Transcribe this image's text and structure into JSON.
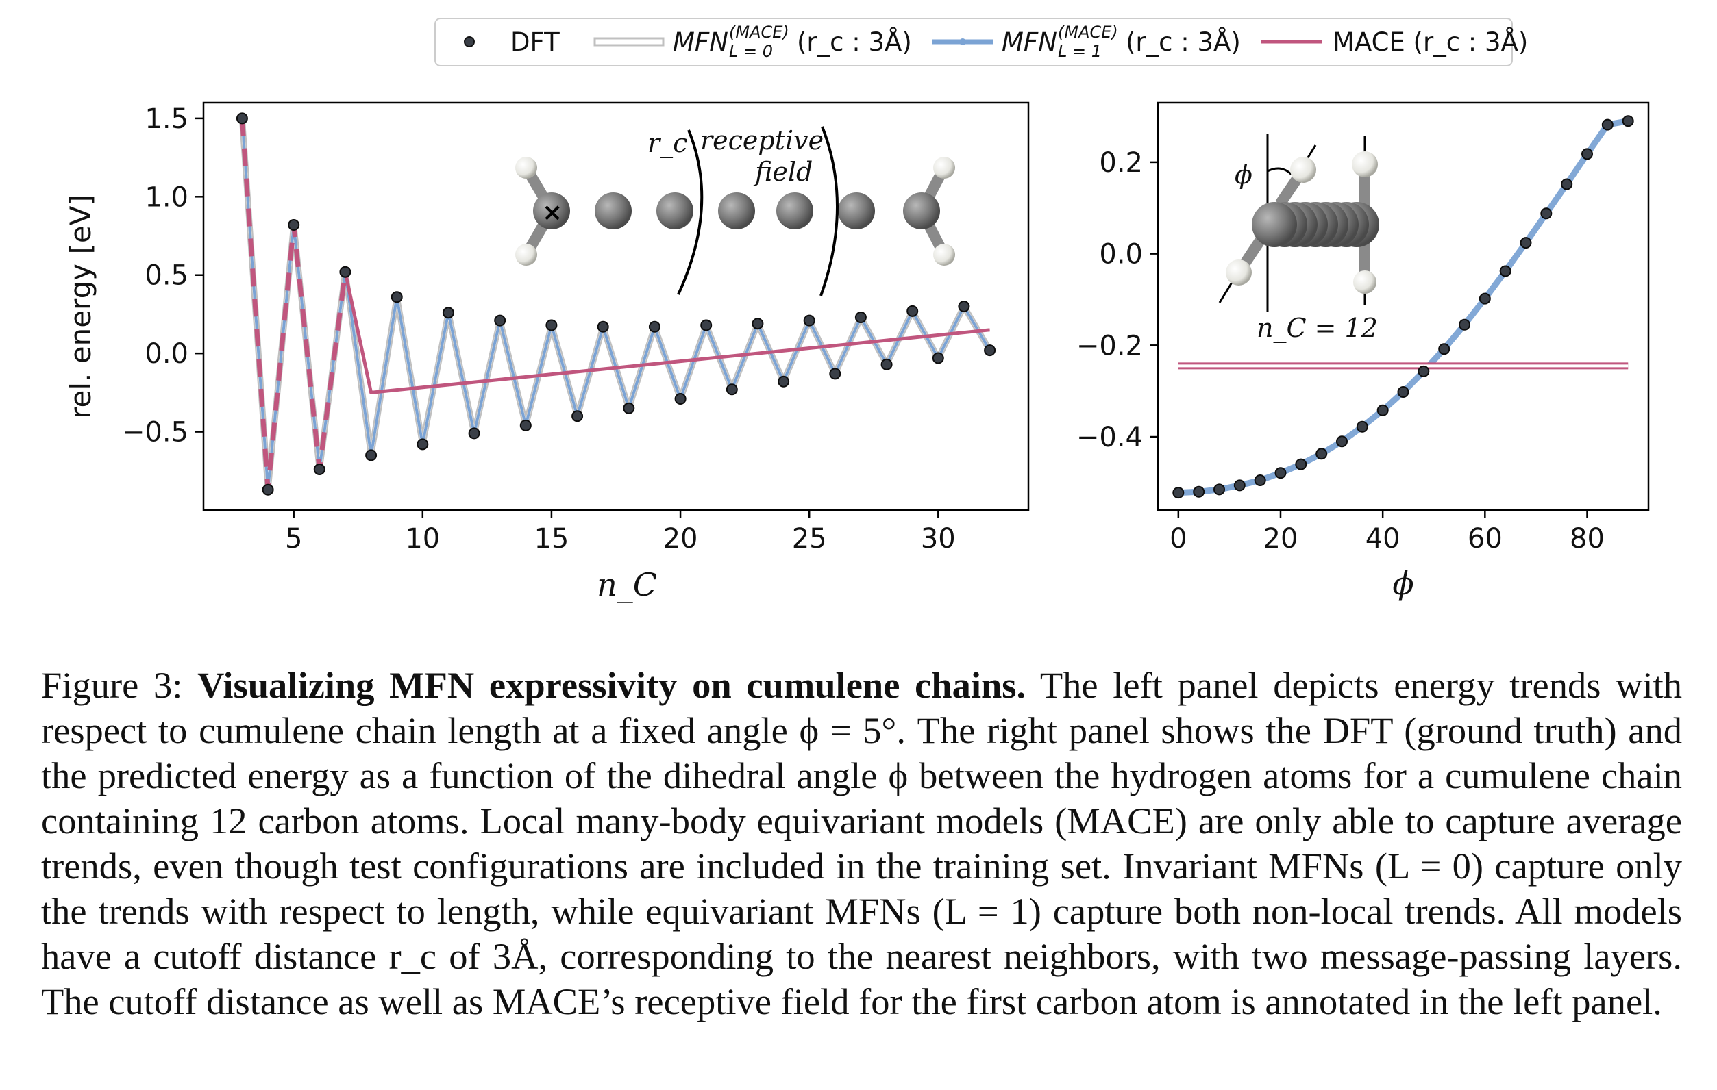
{
  "legend": {
    "dft": "DFT",
    "mfn0_main": "MFN",
    "mfn0_sup": "(MACE)",
    "mfn0_sub": "L = 0",
    "mfn0_tail": "(r_c : 3Å)",
    "mfn1_main": "MFN",
    "mfn1_sup": "(MACE)",
    "mfn1_sub": "L = 1",
    "mfn1_tail": "(r_c : 3Å)",
    "mace": "MACE (r_c : 3Å)"
  },
  "colors": {
    "dft": "#3a3f47",
    "mfn0_edge": "#c0c0c0",
    "mfn1": "#7ba3d4",
    "mace": "#c0567e",
    "axis": "#000000"
  },
  "annotations": {
    "rc": "r_c",
    "receptive_line1": "receptive",
    "receptive_line2": "field",
    "phi": "ϕ",
    "nc12": "n_C = 12"
  },
  "chart_data": [
    {
      "type": "line",
      "xlabel": "n_C",
      "ylabel": "rel. energy [eV]",
      "xlim": [
        1.5,
        33.5
      ],
      "ylim": [
        -1.0,
        1.6
      ],
      "xticks": [
        5,
        10,
        15,
        20,
        25,
        30
      ],
      "yticks": [
        1.5,
        1.0,
        0.5,
        0.0,
        -0.5
      ],
      "ytick_labels": [
        "1.5",
        "1.0",
        "0.5",
        "0.0",
        "−0.5"
      ],
      "x": [
        3,
        4,
        5,
        6,
        7,
        8,
        9,
        10,
        11,
        12,
        13,
        14,
        15,
        16,
        17,
        18,
        19,
        20,
        21,
        22,
        23,
        24,
        25,
        26,
        27,
        28,
        29,
        30,
        31,
        32
      ],
      "series": [
        {
          "name": "DFT",
          "values": [
            1.5,
            -0.87,
            0.82,
            -0.74,
            0.52,
            -0.65,
            0.36,
            -0.58,
            0.26,
            -0.51,
            0.21,
            -0.46,
            0.18,
            -0.4,
            0.17,
            -0.35,
            0.17,
            -0.29,
            0.18,
            -0.23,
            0.19,
            -0.18,
            0.21,
            -0.13,
            0.23,
            -0.07,
            0.27,
            -0.03,
            0.3,
            0.02
          ]
        },
        {
          "name": "MFN (MACE) L=0",
          "values": [
            1.5,
            -0.87,
            0.82,
            -0.74,
            0.52,
            -0.65,
            0.36,
            -0.58,
            0.26,
            -0.51,
            0.21,
            -0.46,
            0.18,
            -0.4,
            0.17,
            -0.35,
            0.17,
            -0.29,
            0.18,
            -0.23,
            0.19,
            -0.18,
            0.21,
            -0.13,
            0.23,
            -0.07,
            0.27,
            -0.03,
            0.3,
            0.02
          ]
        },
        {
          "name": "MFN (MACE) L=1",
          "values": [
            1.5,
            -0.87,
            0.82,
            -0.74,
            0.52,
            -0.65,
            0.36,
            -0.58,
            0.26,
            -0.51,
            0.21,
            -0.46,
            0.18,
            -0.4,
            0.17,
            -0.35,
            0.17,
            -0.29,
            0.18,
            -0.23,
            0.19,
            -0.18,
            0.21,
            -0.13,
            0.23,
            -0.07,
            0.27,
            -0.03,
            0.3,
            0.02
          ]
        },
        {
          "name": "MACE",
          "x": [
            3,
            4,
            5,
            6,
            7,
            8,
            32
          ],
          "values": [
            1.5,
            -0.87,
            0.82,
            -0.74,
            0.52,
            -0.25,
            0.15
          ]
        }
      ]
    },
    {
      "type": "line",
      "xlabel": "ϕ",
      "xlim": [
        -4,
        92
      ],
      "ylim": [
        -0.56,
        0.33
      ],
      "xticks": [
        0,
        20,
        40,
        60,
        80
      ],
      "yticks": [
        0.2,
        0.0,
        -0.2,
        -0.4
      ],
      "ytick_labels": [
        "0.2",
        "0.0",
        "−0.2",
        "−0.4"
      ],
      "x": [
        0,
        4,
        8,
        12,
        16,
        20,
        24,
        28,
        32,
        36,
        40,
        44,
        48,
        52,
        56,
        60,
        64,
        68,
        72,
        76,
        80,
        84,
        88
      ],
      "series": [
        {
          "name": "DFT",
          "values": [
            -0.522,
            -0.52,
            -0.515,
            -0.506,
            -0.495,
            -0.479,
            -0.46,
            -0.437,
            -0.41,
            -0.378,
            -0.342,
            -0.302,
            -0.257,
            -0.208,
            -0.155,
            -0.098,
            -0.038,
            0.024,
            0.088,
            0.152,
            0.218,
            0.282,
            0.29
          ]
        },
        {
          "name": "MFN (MACE) L=0",
          "values": [
            -0.245,
            -0.245,
            -0.245,
            -0.245,
            -0.245,
            -0.245,
            -0.245,
            -0.245,
            -0.245,
            -0.245,
            -0.245,
            -0.245,
            -0.245,
            -0.245,
            -0.245,
            -0.245,
            -0.245,
            -0.245,
            -0.245,
            -0.245,
            -0.245,
            -0.245,
            -0.245
          ]
        },
        {
          "name": "MFN (MACE) L=1",
          "values": [
            -0.522,
            -0.52,
            -0.515,
            -0.506,
            -0.495,
            -0.479,
            -0.46,
            -0.437,
            -0.41,
            -0.378,
            -0.342,
            -0.302,
            -0.257,
            -0.208,
            -0.155,
            -0.098,
            -0.038,
            0.024,
            0.088,
            0.152,
            0.218,
            0.282,
            0.29
          ]
        },
        {
          "name": "MACE",
          "values": [
            -0.245,
            -0.245,
            -0.245,
            -0.245,
            -0.245,
            -0.245,
            -0.245,
            -0.245,
            -0.245,
            -0.245,
            -0.245,
            -0.245,
            -0.245,
            -0.245,
            -0.245,
            -0.245,
            -0.245,
            -0.245,
            -0.245,
            -0.245,
            -0.245,
            -0.245,
            -0.245
          ]
        }
      ]
    }
  ],
  "caption": {
    "label": "Figure 3:",
    "title": "Visualizing MFN expressivity on cumulene chains.",
    "body": "The left panel depicts energy trends with respect to cumulene chain length at a fixed angle ϕ = 5°. The right panel shows the DFT (ground truth) and the predicted energy as a function of the dihedral angle ϕ between the hydrogen atoms for a cumulene chain containing 12 carbon atoms. Local many-body equivariant models (MACE) are only able to capture average trends, even though test configurations are included in the training set. Invariant MFNs (L = 0) capture only the trends with respect to length, while equivariant MFNs (L = 1) capture both non-local trends. All models have a cutoff distance r_c of 3Å, corresponding to the nearest neighbors, with two message-passing layers. The cutoff distance as well as MACE’s receptive field for the first carbon atom is annotated in the left panel."
  }
}
